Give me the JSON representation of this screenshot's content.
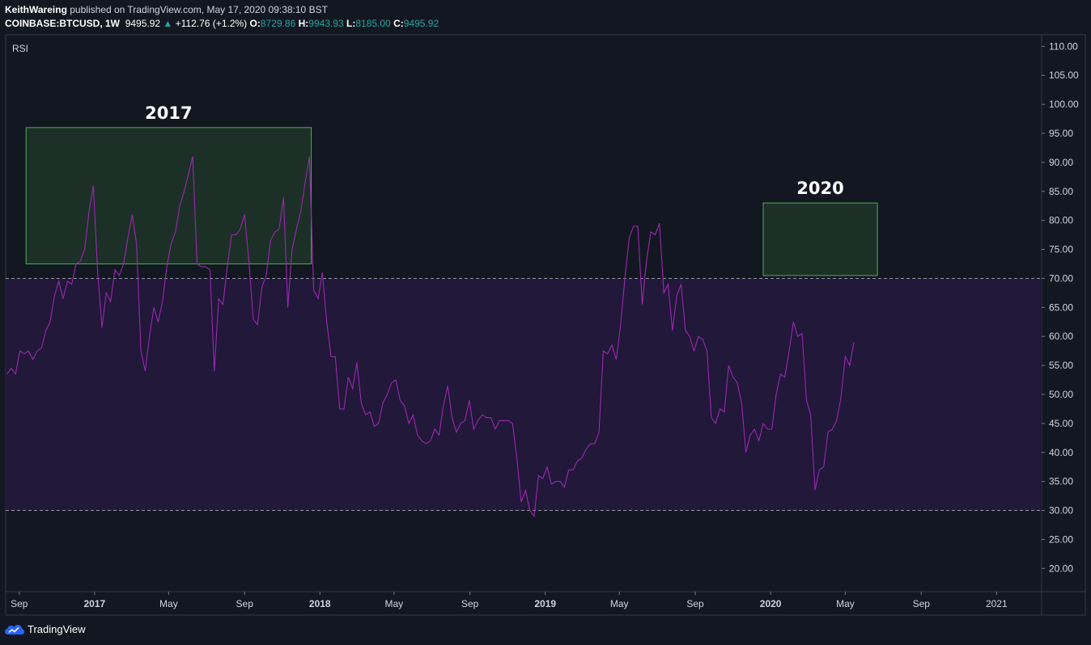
{
  "header": {
    "author": "KeithWareing",
    "published_text": "published on TradingView.com, May 17, 2020 09:38:10 BST",
    "symbol": "COINBASE:BTCUSD, 1W",
    "last": "9495.92",
    "change_arrow": "▲",
    "change": "+112.76 (+1.2%)",
    "o_label": "O:",
    "o_value": "8729.86",
    "h_label": "H:",
    "h_value": "9943.93",
    "l_label": "L:",
    "l_value": "8185.00",
    "c_label": "C:",
    "c_value": "9495.92"
  },
  "footer": {
    "brand": "TradingView"
  },
  "colors": {
    "background": "#131722",
    "rsi_line": "#9c27b0",
    "band_fill": "#21183a",
    "box_fill": "#1e3328",
    "box_border": "#4caf50",
    "up": "#26a69a",
    "axis_text": "#d1d4dc"
  },
  "chart_data": {
    "type": "line",
    "indicator_label": "RSI",
    "y_ticks": [
      "110.00",
      "105.00",
      "100.00",
      "95.00",
      "90.00",
      "85.00",
      "80.00",
      "75.00",
      "70.00",
      "65.00",
      "60.00",
      "55.00",
      "50.00",
      "45.00",
      "40.00",
      "35.00",
      "30.00",
      "25.00",
      "20.00"
    ],
    "x_ticks": [
      {
        "label": "Sep",
        "date": "2016-09-01",
        "bold": false
      },
      {
        "label": "2017",
        "date": "2017-01-01",
        "bold": true
      },
      {
        "label": "May",
        "date": "2017-05-01",
        "bold": false
      },
      {
        "label": "Sep",
        "date": "2017-09-01",
        "bold": false
      },
      {
        "label": "2018",
        "date": "2018-01-01",
        "bold": true
      },
      {
        "label": "May",
        "date": "2018-05-01",
        "bold": false
      },
      {
        "label": "Sep",
        "date": "2018-09-01",
        "bold": false
      },
      {
        "label": "2019",
        "date": "2019-01-01",
        "bold": true
      },
      {
        "label": "May",
        "date": "2019-05-01",
        "bold": false
      },
      {
        "label": "Sep",
        "date": "2019-09-01",
        "bold": false
      },
      {
        "label": "2020",
        "date": "2020-01-01",
        "bold": true
      },
      {
        "label": "May",
        "date": "2020-05-01",
        "bold": false
      },
      {
        "label": "Sep",
        "date": "2020-09-01",
        "bold": false
      },
      {
        "label": "2021",
        "date": "2021-01-01",
        "bold": false
      }
    ],
    "ylim": [
      16,
      112
    ],
    "xlim": [
      "2016-08-10",
      "2021-03-15"
    ],
    "band": {
      "upper": 70,
      "lower": 30
    },
    "annotations": [
      {
        "text": "2017",
        "x_start": "2016-09-12",
        "x_end": "2017-12-18",
        "y_low": 72.5,
        "y_high": 96
      },
      {
        "text": "2020",
        "x_start": "2019-12-20",
        "x_end": "2020-06-22",
        "y_low": 70.5,
        "y_high": 83
      }
    ],
    "series": [
      {
        "values": [
          [
            "2016-08-12",
            53.5
          ],
          [
            "2016-08-19",
            54.5
          ],
          [
            "2016-08-26",
            53.5
          ],
          [
            "2016-09-02",
            57.5
          ],
          [
            "2016-09-09",
            57
          ],
          [
            "2016-09-16",
            57.5
          ],
          [
            "2016-09-23",
            56
          ],
          [
            "2016-09-30",
            57.5
          ],
          [
            "2016-10-07",
            58
          ],
          [
            "2016-10-14",
            61
          ],
          [
            "2016-10-21",
            62.5
          ],
          [
            "2016-10-28",
            67
          ],
          [
            "2016-11-04",
            69.5
          ],
          [
            "2016-11-11",
            66.5
          ],
          [
            "2016-11-18",
            69.5
          ],
          [
            "2016-11-25",
            69
          ],
          [
            "2016-12-02",
            72.5
          ],
          [
            "2016-12-09",
            73
          ],
          [
            "2016-12-16",
            75
          ],
          [
            "2016-12-23",
            81.5
          ],
          [
            "2016-12-30",
            86
          ],
          [
            "2017-01-06",
            71
          ],
          [
            "2017-01-13",
            61.5
          ],
          [
            "2017-01-20",
            67.5
          ],
          [
            "2017-01-27",
            66
          ],
          [
            "2017-02-03",
            71.5
          ],
          [
            "2017-02-10",
            70.5
          ],
          [
            "2017-02-17",
            72.5
          ],
          [
            "2017-02-24",
            77
          ],
          [
            "2017-03-03",
            81
          ],
          [
            "2017-03-10",
            76
          ],
          [
            "2017-03-17",
            57.5
          ],
          [
            "2017-03-24",
            54
          ],
          [
            "2017-03-31",
            60
          ],
          [
            "2017-04-07",
            65
          ],
          [
            "2017-04-14",
            62.5
          ],
          [
            "2017-04-21",
            66
          ],
          [
            "2017-04-28",
            72
          ],
          [
            "2017-05-05",
            76
          ],
          [
            "2017-05-12",
            78
          ],
          [
            "2017-05-19",
            82.5
          ],
          [
            "2017-05-26",
            85
          ],
          [
            "2017-06-02",
            88
          ],
          [
            "2017-06-09",
            91
          ],
          [
            "2017-06-16",
            72.5
          ],
          [
            "2017-06-23",
            72
          ],
          [
            "2017-06-30",
            72
          ],
          [
            "2017-07-07",
            71.5
          ],
          [
            "2017-07-14",
            54
          ],
          [
            "2017-07-21",
            66.5
          ],
          [
            "2017-07-28",
            65.5
          ],
          [
            "2017-08-04",
            72
          ],
          [
            "2017-08-11",
            77.5
          ],
          [
            "2017-08-18",
            77.5
          ],
          [
            "2017-08-25",
            78.5
          ],
          [
            "2017-09-01",
            81
          ],
          [
            "2017-09-08",
            73
          ],
          [
            "2017-09-15",
            63
          ],
          [
            "2017-09-22",
            62
          ],
          [
            "2017-09-29",
            68.5
          ],
          [
            "2017-10-06",
            70.5
          ],
          [
            "2017-10-13",
            76.5
          ],
          [
            "2017-10-20",
            78
          ],
          [
            "2017-10-27",
            78.5
          ],
          [
            "2017-11-03",
            84
          ],
          [
            "2017-11-10",
            65
          ],
          [
            "2017-11-17",
            75
          ],
          [
            "2017-11-24",
            78.5
          ],
          [
            "2017-12-01",
            81.5
          ],
          [
            "2017-12-08",
            86.5
          ],
          [
            "2017-12-15",
            91
          ],
          [
            "2017-12-22",
            68
          ],
          [
            "2017-12-29",
            66.5
          ],
          [
            "2018-01-05",
            71
          ],
          [
            "2018-01-12",
            62.5
          ],
          [
            "2018-01-19",
            56.5
          ],
          [
            "2018-01-26",
            56.5
          ],
          [
            "2018-02-02",
            47.5
          ],
          [
            "2018-02-09",
            47.5
          ],
          [
            "2018-02-16",
            53
          ],
          [
            "2018-02-23",
            51
          ],
          [
            "2018-03-02",
            55.5
          ],
          [
            "2018-03-09",
            48.5
          ],
          [
            "2018-03-16",
            46.5
          ],
          [
            "2018-03-23",
            47
          ],
          [
            "2018-03-30",
            44.5
          ],
          [
            "2018-04-06",
            45
          ],
          [
            "2018-04-13",
            48.5
          ],
          [
            "2018-04-20",
            50
          ],
          [
            "2018-04-27",
            52
          ],
          [
            "2018-05-04",
            52.5
          ],
          [
            "2018-05-11",
            49
          ],
          [
            "2018-05-18",
            48
          ],
          [
            "2018-05-25",
            45
          ],
          [
            "2018-06-01",
            46.5
          ],
          [
            "2018-06-08",
            43
          ],
          [
            "2018-06-15",
            42
          ],
          [
            "2018-06-22",
            41.5
          ],
          [
            "2018-06-29",
            42
          ],
          [
            "2018-07-06",
            44
          ],
          [
            "2018-07-13",
            43
          ],
          [
            "2018-07-20",
            48
          ],
          [
            "2018-07-27",
            51.5
          ],
          [
            "2018-08-03",
            46
          ],
          [
            "2018-08-10",
            43.5
          ],
          [
            "2018-08-17",
            45
          ],
          [
            "2018-08-24",
            45.5
          ],
          [
            "2018-08-31",
            49
          ],
          [
            "2018-09-07",
            44
          ],
          [
            "2018-09-14",
            45.5
          ],
          [
            "2018-09-21",
            46.5
          ],
          [
            "2018-09-28",
            46
          ],
          [
            "2018-10-05",
            46
          ],
          [
            "2018-10-12",
            44
          ],
          [
            "2018-10-19",
            45.5
          ],
          [
            "2018-10-26",
            45.5
          ],
          [
            "2018-11-02",
            45.5
          ],
          [
            "2018-11-09",
            45
          ],
          [
            "2018-11-16",
            39
          ],
          [
            "2018-11-23",
            31.5
          ],
          [
            "2018-11-30",
            33.5
          ],
          [
            "2018-12-07",
            30
          ],
          [
            "2018-12-14",
            29
          ],
          [
            "2018-12-21",
            36
          ],
          [
            "2018-12-28",
            35.5
          ],
          [
            "2019-01-04",
            37.5
          ],
          [
            "2019-01-11",
            34.5
          ],
          [
            "2019-01-18",
            35
          ],
          [
            "2019-01-25",
            35
          ],
          [
            "2019-02-01",
            34
          ],
          [
            "2019-02-08",
            37
          ],
          [
            "2019-02-15",
            37
          ],
          [
            "2019-02-22",
            38.5
          ],
          [
            "2019-03-01",
            39
          ],
          [
            "2019-03-08",
            40.5
          ],
          [
            "2019-03-15",
            41.5
          ],
          [
            "2019-03-22",
            41.5
          ],
          [
            "2019-03-29",
            43.5
          ],
          [
            "2019-04-05",
            57.5
          ],
          [
            "2019-04-12",
            57
          ],
          [
            "2019-04-19",
            58.5
          ],
          [
            "2019-04-26",
            56
          ],
          [
            "2019-05-03",
            62
          ],
          [
            "2019-05-10",
            70
          ],
          [
            "2019-05-17",
            77
          ],
          [
            "2019-05-24",
            79
          ],
          [
            "2019-05-31",
            79
          ],
          [
            "2019-06-07",
            65.5
          ],
          [
            "2019-06-14",
            73
          ],
          [
            "2019-06-21",
            78
          ],
          [
            "2019-06-28",
            77.5
          ],
          [
            "2019-07-05",
            79.5
          ],
          [
            "2019-07-12",
            67.5
          ],
          [
            "2019-07-19",
            69
          ],
          [
            "2019-07-26",
            61
          ],
          [
            "2019-08-02",
            67
          ],
          [
            "2019-08-09",
            69
          ],
          [
            "2019-08-16",
            61
          ],
          [
            "2019-08-23",
            60
          ],
          [
            "2019-08-30",
            57.5
          ],
          [
            "2019-09-06",
            60
          ],
          [
            "2019-09-13",
            59.5
          ],
          [
            "2019-09-20",
            57.5
          ],
          [
            "2019-09-27",
            46
          ],
          [
            "2019-10-04",
            45
          ],
          [
            "2019-10-11",
            47.5
          ],
          [
            "2019-10-18",
            47
          ],
          [
            "2019-10-25",
            55
          ],
          [
            "2019-11-01",
            53
          ],
          [
            "2019-11-08",
            52
          ],
          [
            "2019-11-15",
            48.5
          ],
          [
            "2019-11-22",
            40
          ],
          [
            "2019-11-29",
            43
          ],
          [
            "2019-12-06",
            44
          ],
          [
            "2019-12-13",
            42
          ],
          [
            "2019-12-20",
            45
          ],
          [
            "2019-12-27",
            44
          ],
          [
            "2020-01-03",
            44
          ],
          [
            "2020-01-10",
            50
          ],
          [
            "2020-01-17",
            53.5
          ],
          [
            "2020-01-24",
            53
          ],
          [
            "2020-01-31",
            57.5
          ],
          [
            "2020-02-07",
            62.5
          ],
          [
            "2020-02-14",
            60
          ],
          [
            "2020-02-21",
            60.5
          ],
          [
            "2020-02-28",
            49
          ],
          [
            "2020-03-06",
            46.5
          ],
          [
            "2020-03-13",
            33.5
          ],
          [
            "2020-03-20",
            37
          ],
          [
            "2020-03-27",
            37.5
          ],
          [
            "2020-04-03",
            43.5
          ],
          [
            "2020-04-10",
            44
          ],
          [
            "2020-04-17",
            45.5
          ],
          [
            "2020-04-24",
            49.5
          ],
          [
            "2020-05-01",
            56.5
          ],
          [
            "2020-05-08",
            55
          ],
          [
            "2020-05-15",
            59
          ]
        ]
      }
    ]
  }
}
